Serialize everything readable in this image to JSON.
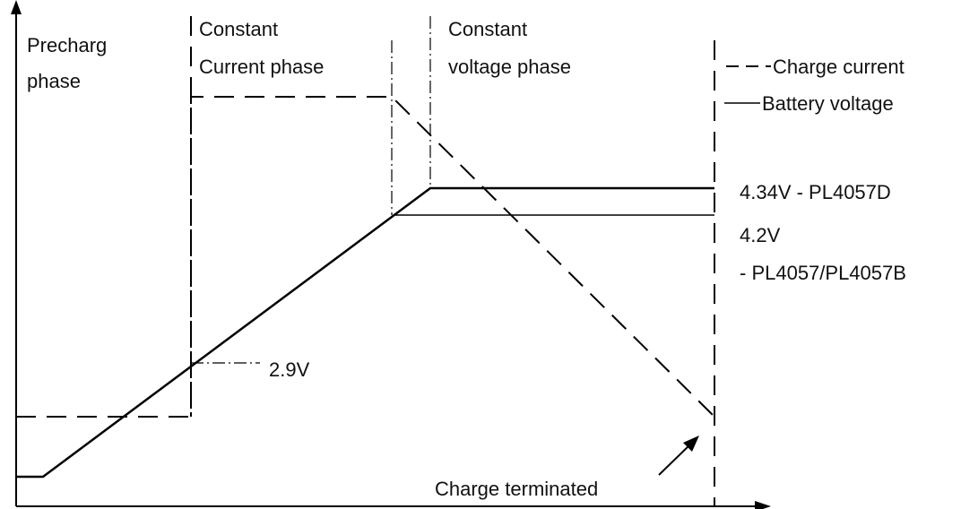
{
  "phases": [
    {
      "line1": "Precharg",
      "line2": "phase"
    },
    {
      "line1": "Constant",
      "line2": "Current phase"
    },
    {
      "line1": "Constant",
      "line2": "voltage phase"
    }
  ],
  "legend": {
    "current": "Charge current",
    "voltage": "Battery voltage"
  },
  "annotations": {
    "high_voltage": "4.34V - PL4057D",
    "low_voltage_value": "4.2V",
    "low_voltage_parts": "- PL4057/PL4057B",
    "precharge_threshold": "2.9V",
    "termination": "Charge terminated"
  }
}
